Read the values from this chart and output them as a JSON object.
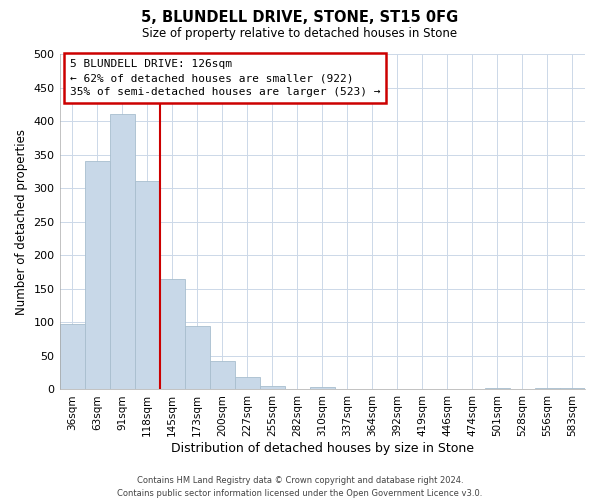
{
  "title": "5, BLUNDELL DRIVE, STONE, ST15 0FG",
  "subtitle": "Size of property relative to detached houses in Stone",
  "xlabel": "Distribution of detached houses by size in Stone",
  "ylabel": "Number of detached properties",
  "bar_labels": [
    "36sqm",
    "63sqm",
    "91sqm",
    "118sqm",
    "145sqm",
    "173sqm",
    "200sqm",
    "227sqm",
    "255sqm",
    "282sqm",
    "310sqm",
    "337sqm",
    "364sqm",
    "392sqm",
    "419sqm",
    "446sqm",
    "474sqm",
    "501sqm",
    "528sqm",
    "556sqm",
    "583sqm"
  ],
  "bar_heights": [
    97,
    341,
    411,
    311,
    164,
    94,
    42,
    19,
    5,
    0,
    3,
    0,
    0,
    0,
    0,
    0,
    0,
    2,
    0,
    2,
    2
  ],
  "bar_color": "#c8d8e8",
  "bar_edge_color": "#a8bece",
  "vline_index": 3.5,
  "vline_color": "#cc0000",
  "annotation_line1": "5 BLUNDELL DRIVE: 126sqm",
  "annotation_line2": "← 62% of detached houses are smaller (922)",
  "annotation_line3": "35% of semi-detached houses are larger (523) →",
  "annotation_box_color": "#ffffff",
  "annotation_box_edge_color": "#cc0000",
  "ylim": [
    0,
    500
  ],
  "yticks": [
    0,
    50,
    100,
    150,
    200,
    250,
    300,
    350,
    400,
    450,
    500
  ],
  "grid_color": "#ccd8e8",
  "footer": "Contains HM Land Registry data © Crown copyright and database right 2024.\nContains public sector information licensed under the Open Government Licence v3.0.",
  "figsize": [
    6.0,
    5.0
  ],
  "dpi": 100
}
